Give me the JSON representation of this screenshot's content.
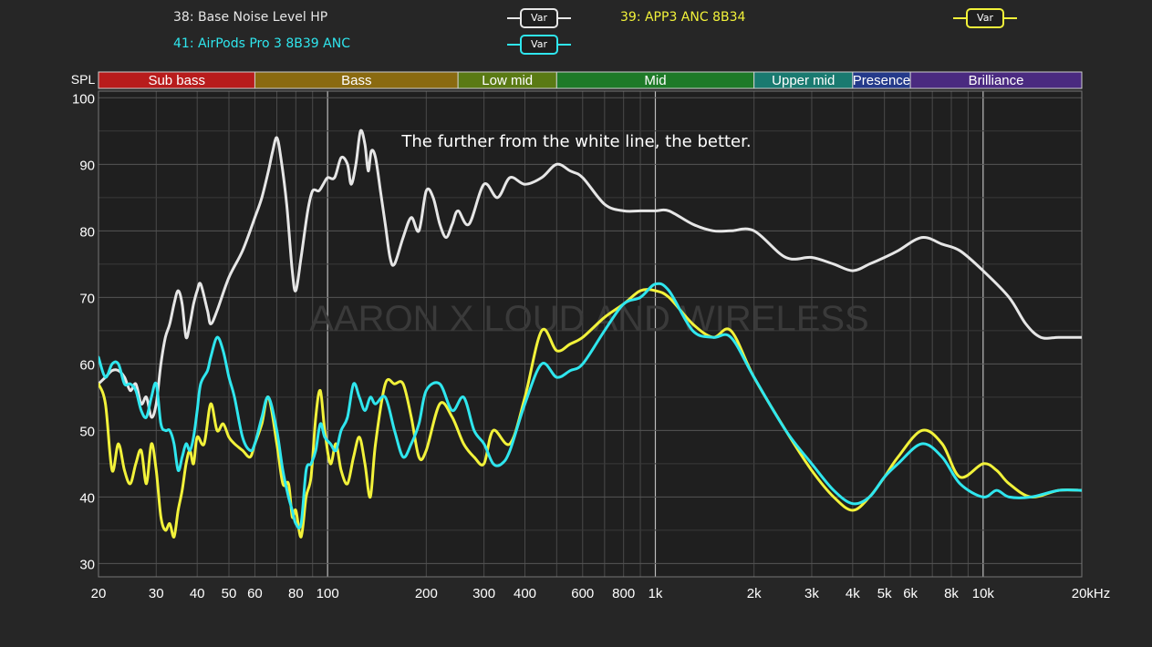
{
  "legend": [
    {
      "label": "38: Base Noise Level HP",
      "color": "#e6e6e6",
      "badge": "Var"
    },
    {
      "label": "39: APP3 ANC 8B34",
      "color": "#f2f23a",
      "badge": "Var"
    },
    {
      "label": "41: AirPods Pro 3 8B39 ANC",
      "color": "#2fe6ee",
      "badge": "Var"
    }
  ],
  "annotation": "The further from the white line, the better.",
  "watermark": "AARON X LOUD AND WIRELESS",
  "chart_data": {
    "type": "line",
    "xscale": "log",
    "xlim": [
      20,
      20000
    ],
    "ylim": [
      28,
      101
    ],
    "ylabel": "SPL",
    "grid": true,
    "y_ticks": [
      100,
      90,
      80,
      70,
      60,
      50,
      40,
      30
    ],
    "x_ticks": [
      {
        "v": 20,
        "label": "20"
      },
      {
        "v": 30,
        "label": "30"
      },
      {
        "v": 40,
        "label": "40"
      },
      {
        "v": 50,
        "label": "50"
      },
      {
        "v": 60,
        "label": "60"
      },
      {
        "v": 80,
        "label": "80"
      },
      {
        "v": 100,
        "label": "100"
      },
      {
        "v": 200,
        "label": "200"
      },
      {
        "v": 300,
        "label": "300"
      },
      {
        "v": 400,
        "label": "400"
      },
      {
        "v": 600,
        "label": "600"
      },
      {
        "v": 800,
        "label": "800"
      },
      {
        "v": 1000,
        "label": "1k"
      },
      {
        "v": 2000,
        "label": "2k"
      },
      {
        "v": 3000,
        "label": "3k"
      },
      {
        "v": 4000,
        "label": "4k"
      },
      {
        "v": 5000,
        "label": "5k"
      },
      {
        "v": 6000,
        "label": "6k"
      },
      {
        "v": 8000,
        "label": "8k"
      },
      {
        "v": 10000,
        "label": "10k"
      },
      {
        "v": 20000,
        "label": "20kHz"
      }
    ],
    "bands": [
      {
        "label": "Sub bass",
        "from": 20,
        "to": 60,
        "color": "#b81c1c"
      },
      {
        "label": "Bass",
        "from": 60,
        "to": 250,
        "color": "#8a6a10"
      },
      {
        "label": "Low mid",
        "from": 250,
        "to": 500,
        "color": "#5a7a14"
      },
      {
        "label": "Mid",
        "from": 500,
        "to": 2000,
        "color": "#1e7a28"
      },
      {
        "label": "Upper mid",
        "from": 2000,
        "to": 4000,
        "color": "#1a7a70"
      },
      {
        "label": "Presence",
        "from": 4000,
        "to": 6000,
        "color": "#243a8a"
      },
      {
        "label": "Brilliance",
        "from": 6000,
        "to": 20000,
        "color": "#4a2a80"
      }
    ],
    "series": [
      {
        "name": "38: Base Noise Level HP",
        "color": "#e6e6e6",
        "points": [
          [
            20,
            57
          ],
          [
            21,
            58
          ],
          [
            22,
            59
          ],
          [
            23,
            59
          ],
          [
            24,
            58
          ],
          [
            25,
            56
          ],
          [
            26,
            57
          ],
          [
            27,
            54
          ],
          [
            28,
            55
          ],
          [
            29,
            52
          ],
          [
            30,
            54
          ],
          [
            31,
            60
          ],
          [
            32,
            64
          ],
          [
            33,
            66
          ],
          [
            34,
            69
          ],
          [
            35,
            71
          ],
          [
            36,
            69
          ],
          [
            37,
            64
          ],
          [
            38,
            66
          ],
          [
            39,
            69
          ],
          [
            40,
            71
          ],
          [
            41,
            72
          ],
          [
            43,
            68
          ],
          [
            44,
            66
          ],
          [
            46,
            68
          ],
          [
            50,
            73
          ],
          [
            55,
            77
          ],
          [
            60,
            82
          ],
          [
            63,
            85
          ],
          [
            66,
            89
          ],
          [
            68,
            92
          ],
          [
            70,
            94
          ],
          [
            72,
            91
          ],
          [
            75,
            84
          ],
          [
            78,
            74
          ],
          [
            80,
            71
          ],
          [
            83,
            76
          ],
          [
            87,
            83
          ],
          [
            90,
            86
          ],
          [
            94,
            86
          ],
          [
            97,
            87
          ],
          [
            100,
            88
          ],
          [
            105,
            88
          ],
          [
            110,
            91
          ],
          [
            115,
            90
          ],
          [
            118,
            87
          ],
          [
            122,
            90
          ],
          [
            126,
            95
          ],
          [
            130,
            93
          ],
          [
            133,
            89
          ],
          [
            136,
            92
          ],
          [
            140,
            91
          ],
          [
            145,
            86
          ],
          [
            150,
            81
          ],
          [
            155,
            76
          ],
          [
            160,
            75
          ],
          [
            170,
            79
          ],
          [
            180,
            82
          ],
          [
            190,
            80
          ],
          [
            200,
            86
          ],
          [
            210,
            85
          ],
          [
            220,
            81
          ],
          [
            230,
            79
          ],
          [
            240,
            81
          ],
          [
            250,
            83
          ],
          [
            270,
            81
          ],
          [
            300,
            87
          ],
          [
            330,
            85
          ],
          [
            360,
            88
          ],
          [
            400,
            87
          ],
          [
            450,
            88
          ],
          [
            500,
            90
          ],
          [
            550,
            89
          ],
          [
            600,
            88
          ],
          [
            700,
            84
          ],
          [
            800,
            83
          ],
          [
            900,
            83
          ],
          [
            1000,
            83
          ],
          [
            1100,
            83
          ],
          [
            1300,
            81
          ],
          [
            1500,
            80
          ],
          [
            1700,
            80
          ],
          [
            2000,
            80
          ],
          [
            2500,
            76
          ],
          [
            3000,
            76
          ],
          [
            3500,
            75
          ],
          [
            4000,
            74
          ],
          [
            4500,
            75
          ],
          [
            5000,
            76
          ],
          [
            5500,
            77
          ],
          [
            6500,
            79
          ],
          [
            7500,
            78
          ],
          [
            8500,
            77
          ],
          [
            10000,
            74
          ],
          [
            12000,
            70
          ],
          [
            13500,
            66
          ],
          [
            15000,
            64
          ],
          [
            17000,
            64
          ],
          [
            20000,
            64
          ]
        ]
      },
      {
        "name": "39: APP3 ANC 8B34",
        "color": "#f2f23a",
        "points": [
          [
            20,
            57
          ],
          [
            21,
            54
          ],
          [
            22,
            44
          ],
          [
            23,
            48
          ],
          [
            24,
            44
          ],
          [
            25,
            42
          ],
          [
            26,
            45
          ],
          [
            27,
            47
          ],
          [
            28,
            42
          ],
          [
            29,
            48
          ],
          [
            30,
            44
          ],
          [
            31,
            37
          ],
          [
            32,
            35
          ],
          [
            33,
            36
          ],
          [
            34,
            34
          ],
          [
            35,
            38
          ],
          [
            36,
            41
          ],
          [
            37,
            45
          ],
          [
            38,
            47
          ],
          [
            39,
            45
          ],
          [
            40,
            49
          ],
          [
            42,
            48
          ],
          [
            44,
            54
          ],
          [
            46,
            50
          ],
          [
            48,
            51
          ],
          [
            50,
            49
          ],
          [
            52,
            48
          ],
          [
            55,
            47
          ],
          [
            58,
            46
          ],
          [
            60,
            48
          ],
          [
            63,
            51
          ],
          [
            66,
            55
          ],
          [
            70,
            48
          ],
          [
            73,
            42
          ],
          [
            76,
            42
          ],
          [
            78,
            37
          ],
          [
            80,
            38
          ],
          [
            83,
            34
          ],
          [
            86,
            40
          ],
          [
            89,
            43
          ],
          [
            92,
            52
          ],
          [
            95,
            56
          ],
          [
            98,
            50
          ],
          [
            102,
            45
          ],
          [
            106,
            48
          ],
          [
            110,
            44
          ],
          [
            115,
            42
          ],
          [
            120,
            46
          ],
          [
            125,
            49
          ],
          [
            130,
            45
          ],
          [
            135,
            40
          ],
          [
            140,
            48
          ],
          [
            150,
            57
          ],
          [
            160,
            57
          ],
          [
            170,
            57
          ],
          [
            180,
            52
          ],
          [
            190,
            46
          ],
          [
            200,
            47
          ],
          [
            220,
            54
          ],
          [
            240,
            52
          ],
          [
            260,
            48
          ],
          [
            280,
            46
          ],
          [
            300,
            45
          ],
          [
            320,
            50
          ],
          [
            360,
            48
          ],
          [
            400,
            55
          ],
          [
            450,
            65
          ],
          [
            500,
            62
          ],
          [
            550,
            63
          ],
          [
            600,
            64
          ],
          [
            700,
            67
          ],
          [
            800,
            69
          ],
          [
            900,
            71
          ],
          [
            1000,
            71
          ],
          [
            1100,
            70
          ],
          [
            1300,
            66
          ],
          [
            1500,
            64
          ],
          [
            1700,
            65
          ],
          [
            2000,
            58
          ],
          [
            2500,
            50
          ],
          [
            3000,
            44
          ],
          [
            3500,
            40
          ],
          [
            4000,
            38
          ],
          [
            4500,
            40
          ],
          [
            5000,
            43
          ],
          [
            5500,
            46
          ],
          [
            6500,
            50
          ],
          [
            7500,
            48
          ],
          [
            8500,
            43
          ],
          [
            10000,
            45
          ],
          [
            11000,
            44
          ],
          [
            12000,
            42
          ],
          [
            14000,
            40
          ],
          [
            17000,
            41
          ],
          [
            20000,
            41
          ]
        ]
      },
      {
        "name": "41: AirPods Pro 3 8B39 ANC",
        "color": "#2fe6ee",
        "points": [
          [
            20,
            61
          ],
          [
            21,
            58
          ],
          [
            22,
            60
          ],
          [
            23,
            60
          ],
          [
            24,
            57
          ],
          [
            25,
            57
          ],
          [
            26,
            56
          ],
          [
            27,
            53
          ],
          [
            28,
            52
          ],
          [
            29,
            55
          ],
          [
            30,
            57
          ],
          [
            31,
            51
          ],
          [
            32,
            50
          ],
          [
            33,
            50
          ],
          [
            34,
            48
          ],
          [
            35,
            44
          ],
          [
            36,
            46
          ],
          [
            37,
            48
          ],
          [
            38,
            47
          ],
          [
            39,
            49
          ],
          [
            40,
            53
          ],
          [
            41,
            57
          ],
          [
            43,
            59
          ],
          [
            44,
            61
          ],
          [
            46,
            64
          ],
          [
            48,
            62
          ],
          [
            50,
            58
          ],
          [
            52,
            55
          ],
          [
            55,
            49
          ],
          [
            58,
            47
          ],
          [
            60,
            48
          ],
          [
            63,
            52
          ],
          [
            66,
            55
          ],
          [
            70,
            50
          ],
          [
            73,
            44
          ],
          [
            76,
            40
          ],
          [
            78,
            38
          ],
          [
            80,
            36
          ],
          [
            83,
            36
          ],
          [
            86,
            44
          ],
          [
            89,
            45
          ],
          [
            92,
            47
          ],
          [
            95,
            51
          ],
          [
            98,
            49
          ],
          [
            102,
            48
          ],
          [
            106,
            47
          ],
          [
            110,
            50
          ],
          [
            115,
            52
          ],
          [
            120,
            57
          ],
          [
            125,
            55
          ],
          [
            130,
            53
          ],
          [
            135,
            55
          ],
          [
            140,
            54
          ],
          [
            150,
            55
          ],
          [
            160,
            50
          ],
          [
            170,
            46
          ],
          [
            180,
            48
          ],
          [
            190,
            51
          ],
          [
            200,
            56
          ],
          [
            220,
            57
          ],
          [
            240,
            53
          ],
          [
            260,
            55
          ],
          [
            280,
            50
          ],
          [
            300,
            48
          ],
          [
            320,
            45
          ],
          [
            340,
            45
          ],
          [
            360,
            47
          ],
          [
            400,
            54
          ],
          [
            450,
            60
          ],
          [
            500,
            58
          ],
          [
            550,
            59
          ],
          [
            600,
            60
          ],
          [
            700,
            65
          ],
          [
            800,
            69
          ],
          [
            900,
            70
          ],
          [
            1000,
            72
          ],
          [
            1100,
            71
          ],
          [
            1300,
            65
          ],
          [
            1500,
            64
          ],
          [
            1700,
            64
          ],
          [
            2000,
            58
          ],
          [
            2500,
            50
          ],
          [
            3000,
            45
          ],
          [
            3500,
            41
          ],
          [
            4000,
            39
          ],
          [
            4500,
            40
          ],
          [
            5000,
            43
          ],
          [
            5500,
            45
          ],
          [
            6500,
            48
          ],
          [
            7500,
            46
          ],
          [
            8500,
            42
          ],
          [
            10000,
            40
          ],
          [
            11000,
            41
          ],
          [
            12000,
            40
          ],
          [
            14000,
            40
          ],
          [
            17000,
            41
          ],
          [
            20000,
            41
          ]
        ]
      }
    ]
  }
}
